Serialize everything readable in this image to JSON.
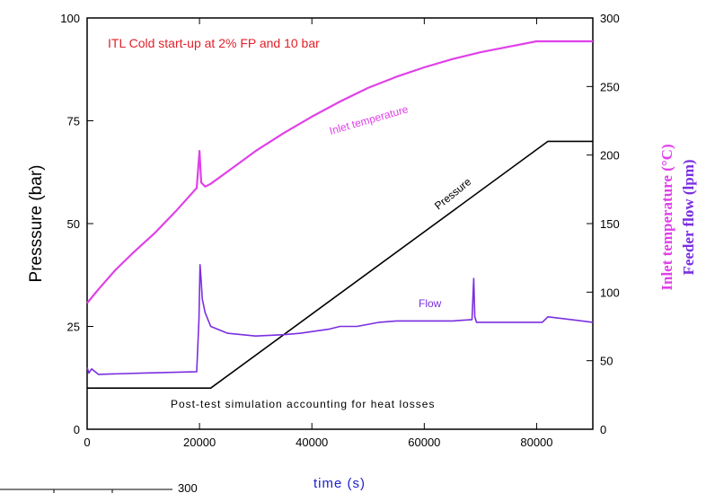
{
  "chart_data": {
    "type": "line",
    "title": "ITL Cold start-up at 2% FP and 10 bar",
    "xlabel": "time (s)",
    "ylabel": "Presssure (bar)",
    "y2label_1": "Inlet temperature (°C)",
    "y2label_2": "Feeder flow (lpm)",
    "xlim": [
      0,
      90000
    ],
    "ylim": [
      0,
      100
    ],
    "y2lim": [
      0,
      300
    ],
    "xticks": [
      "0",
      "20000",
      "40000",
      "60000",
      "80000"
    ],
    "yticks": [
      "0",
      "25",
      "50",
      "75",
      "100"
    ],
    "y2ticks": [
      "0",
      "50",
      "100",
      "150",
      "200",
      "250",
      "300"
    ],
    "note": "Post-test simulation accounting for heat losses",
    "annotations": {
      "inlet": "Inlet temperature",
      "pressure": "Pressure",
      "flow": "Flow"
    },
    "colors": {
      "inlet": "#e040e8",
      "pressure": "#000000",
      "flow": "#7a2ee0",
      "title": "#e0202a",
      "xlabel": "#1e22c8"
    },
    "series": [
      {
        "key": "pressure",
        "axis": "left",
        "x": [
          0,
          22000,
          82000,
          90000
        ],
        "values": [
          10,
          10,
          70,
          70
        ]
      },
      {
        "key": "inlet",
        "axis": "right",
        "x": [
          0,
          2000,
          5000,
          8000,
          12000,
          16000,
          19500,
          20000,
          20300,
          21000,
          22000,
          25000,
          30000,
          35000,
          40000,
          45000,
          50000,
          55000,
          60000,
          65000,
          70000,
          75000,
          80000,
          82000,
          90000
        ],
        "values": [
          92,
          102,
          116,
          128,
          143,
          160,
          176,
          203,
          180,
          177,
          179,
          188,
          203,
          216,
          228,
          239,
          249,
          257,
          264,
          270,
          275,
          279,
          283,
          283,
          283
        ]
      },
      {
        "key": "flow",
        "axis": "right",
        "x": [
          0,
          300,
          800,
          2000,
          10000,
          19500,
          19900,
          20000,
          20100,
          20300,
          20500,
          21000,
          22000,
          25000,
          30000,
          35000,
          38000,
          43000,
          45000,
          48000,
          52000,
          55000,
          60000,
          65000,
          68500,
          68800,
          69000,
          69300,
          70000,
          75000,
          81000,
          82000,
          90000
        ],
        "values": [
          45,
          41,
          44,
          40,
          41,
          42,
          80,
          100,
          120,
          108,
          95,
          85,
          75,
          70,
          68,
          69,
          70,
          73,
          75,
          75,
          78,
          79,
          79,
          79,
          80,
          110,
          82,
          78,
          78,
          78,
          78,
          82,
          78
        ]
      }
    ]
  }
}
